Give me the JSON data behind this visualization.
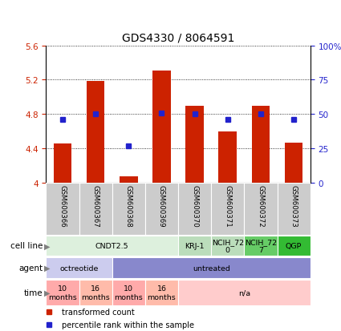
{
  "title": "GDS4330 / 8064591",
  "samples": [
    "GSM600366",
    "GSM600367",
    "GSM600368",
    "GSM600369",
    "GSM600370",
    "GSM600371",
    "GSM600372",
    "GSM600373"
  ],
  "transformed_counts": [
    4.46,
    5.19,
    4.08,
    5.31,
    4.9,
    4.6,
    4.9,
    4.47
  ],
  "percentile_ranks": [
    46,
    50,
    27,
    51,
    50,
    46,
    50,
    46
  ],
  "ylim_left": [
    4.0,
    5.6
  ],
  "ylim_right": [
    0,
    100
  ],
  "yticks_left": [
    4.0,
    4.4,
    4.8,
    5.2,
    5.6
  ],
  "yticks_right": [
    0,
    25,
    50,
    75,
    100
  ],
  "ytick_labels_left": [
    "4",
    "4.4",
    "4.8",
    "5.2",
    "5.6"
  ],
  "ytick_labels_right": [
    "0",
    "25",
    "50",
    "75",
    "100%"
  ],
  "bar_color": "#cc2200",
  "dot_color": "#2222cc",
  "cell_line_groups": [
    {
      "label": "CNDT2.5",
      "start": 0,
      "end": 3,
      "color": "#ddf0dd"
    },
    {
      "label": "KRJ-1",
      "start": 4,
      "end": 4,
      "color": "#bbddbb"
    },
    {
      "label": "NCIH_72\n0",
      "start": 5,
      "end": 5,
      "color": "#bbddbb"
    },
    {
      "label": "NCIH_72\n7",
      "start": 6,
      "end": 6,
      "color": "#66cc66"
    },
    {
      "label": "QGP",
      "start": 7,
      "end": 7,
      "color": "#33bb33"
    }
  ],
  "agent_groups": [
    {
      "label": "octreotide",
      "start": 0,
      "end": 1,
      "color": "#ccccee"
    },
    {
      "label": "untreated",
      "start": 2,
      "end": 7,
      "color": "#8888cc"
    }
  ],
  "time_groups": [
    {
      "label": "10\nmonths",
      "start": 0,
      "end": 0,
      "color": "#ffaaaa"
    },
    {
      "label": "16\nmonths",
      "start": 1,
      "end": 1,
      "color": "#ffbbaa"
    },
    {
      "label": "10\nmonths",
      "start": 2,
      "end": 2,
      "color": "#ffaaaa"
    },
    {
      "label": "16\nmonths",
      "start": 3,
      "end": 3,
      "color": "#ffbbaa"
    },
    {
      "label": "n/a",
      "start": 4,
      "end": 7,
      "color": "#ffcccc"
    }
  ],
  "row_labels": [
    "cell line",
    "agent",
    "time"
  ],
  "legend_items": [
    {
      "label": "transformed count",
      "color": "#cc2200"
    },
    {
      "label": "percentile rank within the sample",
      "color": "#2222cc"
    }
  ],
  "bg_color": "#ffffff",
  "grid_color": "#000000",
  "sample_box_color": "#cccccc"
}
